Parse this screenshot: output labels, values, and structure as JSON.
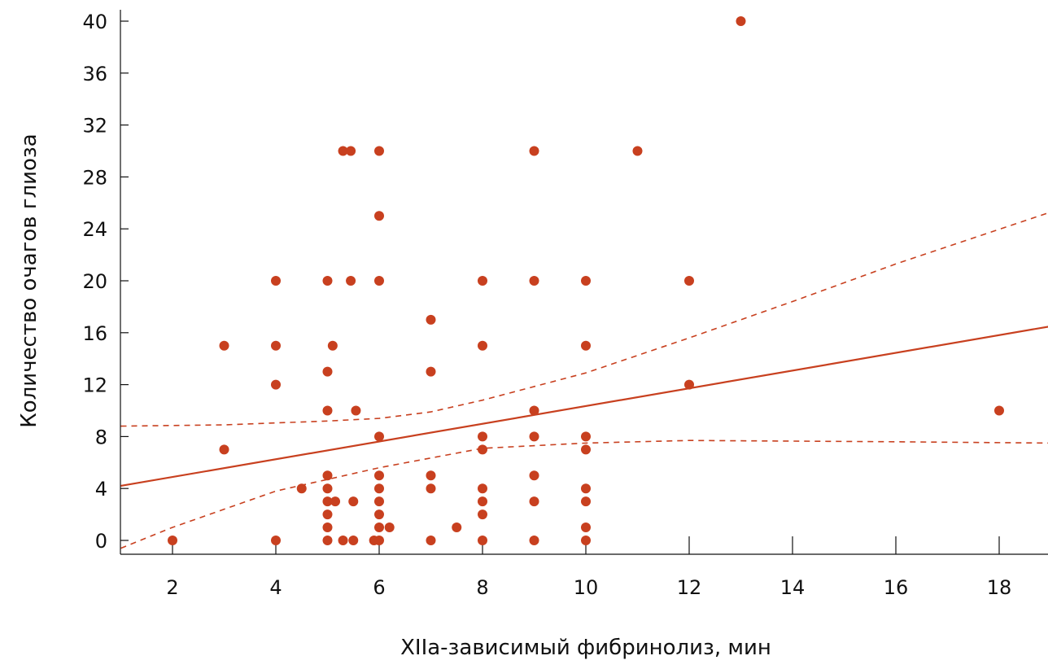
{
  "chart_data": {
    "type": "scatter",
    "title": "",
    "xlabel": "XIIa-зависимый фибринолиз, мин",
    "ylabel": "Количество очагов глиоза",
    "xlim": [
      1,
      19
    ],
    "ylim": [
      -1,
      40
    ],
    "xticks": [
      2,
      4,
      6,
      8,
      10,
      12,
      14,
      16,
      18
    ],
    "yticks": [
      0,
      4,
      8,
      12,
      16,
      20,
      24,
      28,
      32,
      36,
      40
    ],
    "grid": false,
    "color": "#c8401f",
    "points": [
      [
        2,
        0
      ],
      [
        3,
        15
      ],
      [
        3,
        7
      ],
      [
        4,
        20
      ],
      [
        4,
        15
      ],
      [
        4,
        12
      ],
      [
        4,
        0
      ],
      [
        4.5,
        4
      ],
      [
        5,
        20
      ],
      [
        5,
        13
      ],
      [
        5,
        10
      ],
      [
        5,
        5
      ],
      [
        5,
        4
      ],
      [
        5,
        3
      ],
      [
        5,
        2
      ],
      [
        5,
        1
      ],
      [
        5,
        0
      ],
      [
        5.1,
        15
      ],
      [
        5.15,
        3
      ],
      [
        5.3,
        30
      ],
      [
        5.3,
        0
      ],
      [
        5.45,
        30
      ],
      [
        5.45,
        20
      ],
      [
        5.5,
        3
      ],
      [
        5.5,
        0
      ],
      [
        5.55,
        10
      ],
      [
        5.9,
        0
      ],
      [
        6,
        30
      ],
      [
        6,
        25
      ],
      [
        6,
        20
      ],
      [
        6,
        8
      ],
      [
        6,
        5
      ],
      [
        6,
        4
      ],
      [
        6,
        3
      ],
      [
        6,
        2
      ],
      [
        6,
        1
      ],
      [
        6,
        0
      ],
      [
        6.2,
        1
      ],
      [
        7,
        17
      ],
      [
        7,
        13
      ],
      [
        7,
        5
      ],
      [
        7,
        4
      ],
      [
        7,
        0
      ],
      [
        7.5,
        1
      ],
      [
        8,
        20
      ],
      [
        8,
        15
      ],
      [
        8,
        8
      ],
      [
        8,
        7
      ],
      [
        8,
        4
      ],
      [
        8,
        3
      ],
      [
        8,
        2
      ],
      [
        8,
        0
      ],
      [
        9,
        30
      ],
      [
        9,
        20
      ],
      [
        9,
        10
      ],
      [
        9,
        8
      ],
      [
        9,
        5
      ],
      [
        9,
        3
      ],
      [
        9,
        0
      ],
      [
        10,
        20
      ],
      [
        10,
        15
      ],
      [
        10,
        8
      ],
      [
        10,
        7
      ],
      [
        10,
        4
      ],
      [
        10,
        3
      ],
      [
        10,
        1
      ],
      [
        10,
        0
      ],
      [
        11,
        30
      ],
      [
        12,
        20
      ],
      [
        12,
        12
      ],
      [
        13,
        40
      ],
      [
        18,
        10
      ]
    ],
    "regression": {
      "slope": 0.683,
      "intercept": 3.52
    },
    "upper_ci": [
      [
        1,
        8.8
      ],
      [
        3,
        8.9
      ],
      [
        5,
        9.2
      ],
      [
        6,
        9.4
      ],
      [
        7,
        9.9
      ],
      [
        8,
        10.8
      ],
      [
        10,
        12.9
      ],
      [
        12,
        15.6
      ],
      [
        14,
        18.4
      ],
      [
        16,
        21.3
      ],
      [
        19,
        25.3
      ]
    ],
    "lower_ci": [
      [
        1,
        -0.6
      ],
      [
        2,
        1.0
      ],
      [
        4,
        3.8
      ],
      [
        6,
        5.6
      ],
      [
        8,
        7.1
      ],
      [
        10,
        7.5
      ],
      [
        12,
        7.7
      ],
      [
        16,
        7.6
      ],
      [
        19,
        7.5
      ]
    ]
  }
}
